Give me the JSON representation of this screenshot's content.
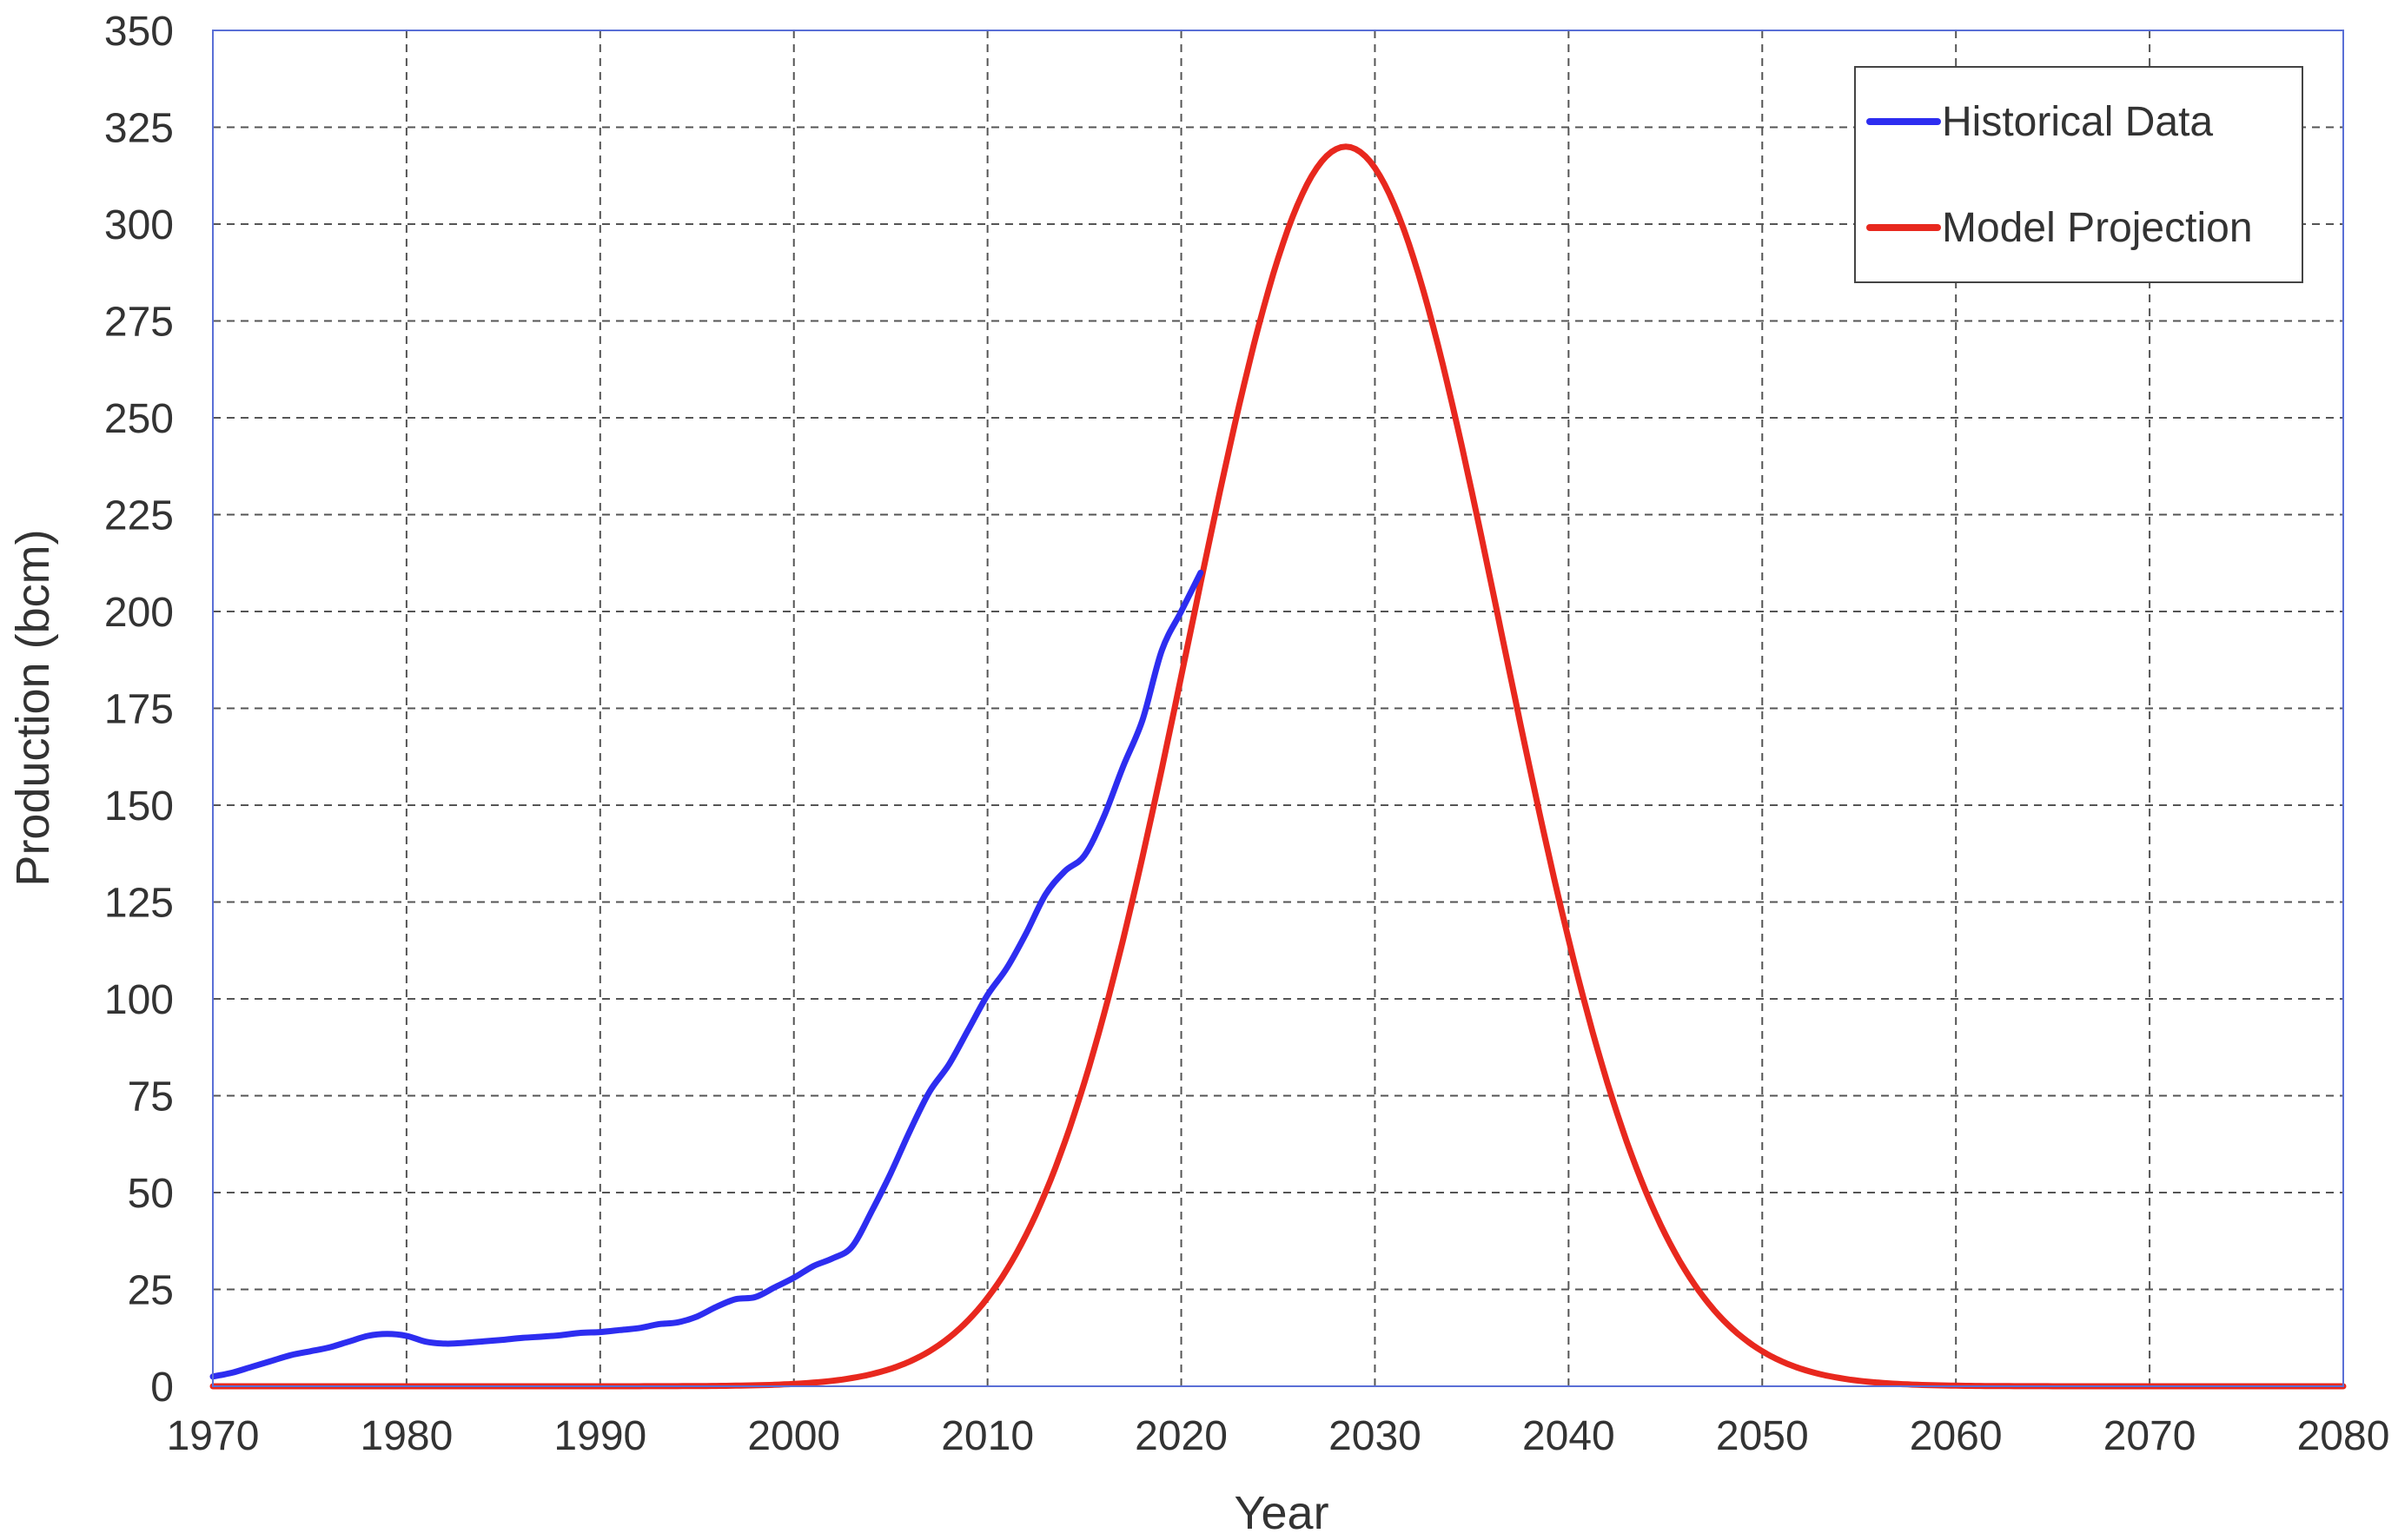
{
  "chart_data": {
    "type": "line",
    "title": "",
    "xlabel": "Year",
    "ylabel": "Production (bcm)",
    "xlim": [
      1970,
      2080
    ],
    "ylim": [
      0,
      350
    ],
    "xticks": [
      1970,
      1980,
      1990,
      2000,
      2010,
      2020,
      2030,
      2040,
      2050,
      2060,
      2070,
      2080
    ],
    "yticks": [
      0,
      25,
      50,
      75,
      100,
      125,
      150,
      175,
      200,
      225,
      250,
      275,
      300,
      325,
      350
    ],
    "grid": true,
    "legend_position": "top-right",
    "series": [
      {
        "name": "Historical Data",
        "color": "#2d2df0",
        "x": [
          1970,
          1971,
          1972,
          1973,
          1974,
          1975,
          1976,
          1977,
          1978,
          1979,
          1980,
          1981,
          1982,
          1983,
          1984,
          1985,
          1986,
          1987,
          1988,
          1989,
          1990,
          1991,
          1992,
          1993,
          1994,
          1995,
          1996,
          1997,
          1998,
          1999,
          2000,
          2001,
          2002,
          2003,
          2004,
          2005,
          2006,
          2007,
          2008,
          2009,
          2010,
          2011,
          2012,
          2013,
          2014,
          2015,
          2016,
          2017,
          2018,
          2019,
          2020,
          2021
        ],
        "y": [
          2.5,
          3.5,
          5,
          6.5,
          8,
          9,
          10,
          11.5,
          13,
          13.5,
          13,
          11.5,
          11,
          11.2,
          11.6,
          12,
          12.5,
          12.8,
          13.2,
          13.8,
          14,
          14.5,
          15,
          16,
          16.5,
          18,
          20.5,
          22.5,
          23,
          25.5,
          28,
          31,
          33,
          36,
          45,
          55,
          66,
          76,
          83,
          92,
          101,
          108,
          117,
          127,
          133,
          137,
          147,
          160,
          172,
          190,
          200,
          210
        ]
      },
      {
        "name": "Model Projection",
        "color": "#e8281e",
        "model": "gaussian",
        "peak": 320,
        "peak_year": 2028.5,
        "sigma": 8.05,
        "x_range": [
          1970,
          2080
        ]
      }
    ]
  }
}
